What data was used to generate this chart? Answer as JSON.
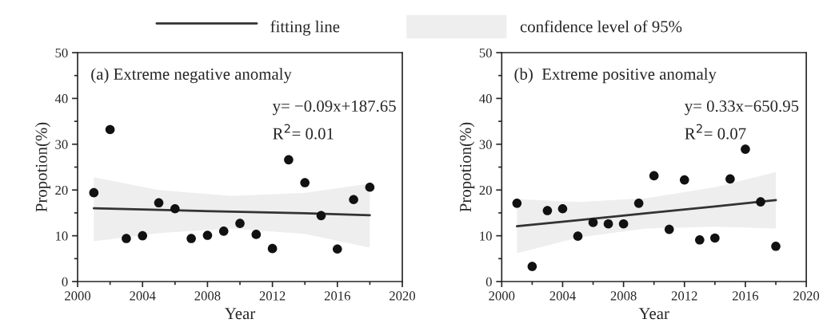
{
  "chart_data": [
    {
      "type": "scatter",
      "xlabel": "Year",
      "ylabel": "Propotion(%)",
      "xlim": [
        2000,
        2020
      ],
      "xticks": [
        2000,
        2004,
        2008,
        2012,
        2016,
        2020
      ],
      "ylim": [
        0,
        50
      ],
      "yticks": [
        0,
        10,
        20,
        30,
        40,
        50
      ],
      "legend": "top",
      "annotations": [
        "(a) Extreme negative anomaly",
        "y= −0.09x+187.65",
        "R$^{2}$= 0.01",
        "confidence level of 95%"
      ],
      "series": [
        {
          "color": "#111111",
          "marker": "circle",
          "x": [
            2001,
            2002,
            2003,
            2004,
            2005,
            2006,
            2007,
            2008,
            2009,
            2010,
            2011,
            2012,
            2013,
            2014,
            2015,
            2016,
            2017,
            2018
          ],
          "values": [
            19.4,
            33.2,
            9.4,
            10.0,
            17.2,
            15.9,
            9.4,
            10.1,
            11.0,
            12.7,
            10.3,
            7.2,
            26.6,
            21.6,
            14.4,
            7.1,
            17.9,
            20.6
          ]
        },
        {
          "type": "line",
          "name": "fitting line",
          "color": "#333333",
          "marker": "none",
          "x": [
            2001,
            2005,
            2009.5,
            2014,
            2018
          ],
          "values": [
            16.0,
            15.65,
            15.25,
            14.9,
            14.5
          ],
          "lower": [
            8.8,
            10.6,
            11.6,
            10.4,
            7.4
          ],
          "upper": [
            22.8,
            20.0,
            18.7,
            19.4,
            21.4
          ]
        }
      ]
    },
    {
      "type": "scatter",
      "xlabel": "Year",
      "ylabel": "Propotion(%)",
      "xlim": [
        2000,
        2020
      ],
      "xticks": [
        2000,
        2004,
        2008,
        2012,
        2016,
        2020
      ],
      "ylim": [
        0,
        50
      ],
      "yticks": [
        0,
        10,
        20,
        30,
        40,
        50
      ],
      "annotations": [
        "(b)  Extreme positive anomaly",
        "y= 0.33x−650.95",
        "R$^{2}$= 0.07"
      ],
      "series": [
        {
          "color": "#111111",
          "marker": "circle",
          "x": [
            2001,
            2002,
            2003,
            2004,
            2005,
            2006,
            2007,
            2008,
            2009,
            2010,
            2011,
            2012,
            2013,
            2014,
            2015,
            2016,
            2017,
            2018
          ],
          "values": [
            17.1,
            3.3,
            15.5,
            15.9,
            9.9,
            12.9,
            12.6,
            12.6,
            17.1,
            23.1,
            11.4,
            22.2,
            9.1,
            9.5,
            22.4,
            28.9,
            17.4,
            7.7
          ]
        },
        {
          "type": "line",
          "color": "#333333",
          "marker": "none",
          "x": [
            2001,
            2005,
            2009.5,
            2014,
            2018
          ],
          "values": [
            12.1,
            13.4,
            14.9,
            16.4,
            17.8
          ],
          "lower": [
            6.2,
            9.6,
            11.6,
            12.0,
            11.6
          ],
          "upper": [
            18.0,
            17.4,
            18.2,
            20.6,
            23.9
          ]
        }
      ]
    }
  ]
}
